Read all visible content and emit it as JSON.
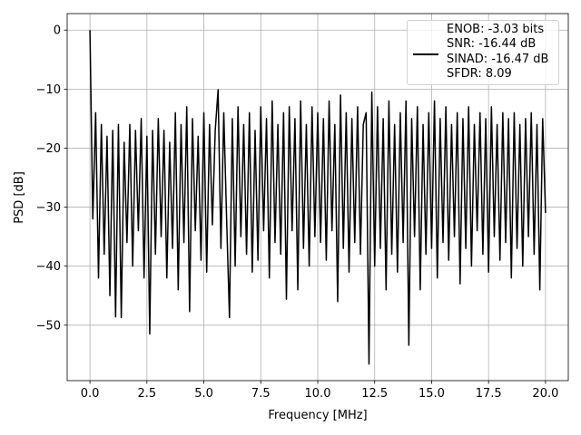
{
  "chart_data": {
    "type": "line",
    "x_label": "Frequency [MHz]",
    "y_label": "PSD [dB]",
    "xlim": [
      -1,
      21
    ],
    "ylim": [
      -59.4,
      2.8
    ],
    "xticks": [
      {
        "value": 0,
        "label": "0.0"
      },
      2.5,
      {
        "value": 5,
        "label": "5.0"
      },
      7.5,
      {
        "value": 10,
        "label": "10.0"
      },
      12.5,
      {
        "value": 15,
        "label": "15.0"
      },
      17.5,
      {
        "value": 20,
        "label": "20.0"
      }
    ],
    "yticks": [
      0,
      {
        "value": -10,
        "label": "−10"
      },
      {
        "value": -20,
        "label": "−20"
      },
      {
        "value": -30,
        "label": "−30"
      },
      {
        "value": -40,
        "label": "−40"
      },
      {
        "value": -50,
        "label": "−50"
      }
    ],
    "grid": true,
    "legend": "upper right",
    "x": [
      0,
      0.125,
      0.25,
      0.375,
      0.5,
      0.625,
      0.75,
      0.875,
      1,
      1.125,
      1.25,
      1.375,
      1.5,
      1.625,
      1.75,
      1.875,
      2,
      2.125,
      2.25,
      2.375,
      2.5,
      2.625,
      2.75,
      2.875,
      3,
      3.125,
      3.25,
      3.375,
      3.5,
      3.625,
      3.75,
      3.875,
      4,
      4.125,
      4.25,
      4.375,
      4.5,
      4.625,
      4.75,
      4.875,
      5,
      5.125,
      5.25,
      5.375,
      5.5,
      5.625,
      5.75,
      5.875,
      6,
      6.125,
      6.25,
      6.375,
      6.5,
      6.625,
      6.75,
      6.875,
      7,
      7.125,
      7.25,
      7.375,
      7.5,
      7.625,
      7.75,
      7.875,
      8,
      8.125,
      8.25,
      8.375,
      8.5,
      8.625,
      8.75,
      8.875,
      9,
      9.125,
      9.25,
      9.375,
      9.5,
      9.625,
      9.75,
      9.875,
      10,
      10.125,
      10.25,
      10.375,
      10.5,
      10.625,
      10.75,
      10.875,
      11,
      11.125,
      11.25,
      11.375,
      11.5,
      11.625,
      11.75,
      11.875,
      12,
      12.125,
      12.25,
      12.375,
      12.5,
      12.625,
      12.75,
      12.875,
      13,
      13.125,
      13.25,
      13.375,
      13.5,
      13.625,
      13.75,
      13.875,
      14,
      14.125,
      14.25,
      14.375,
      14.5,
      14.625,
      14.75,
      14.875,
      15,
      15.125,
      15.25,
      15.375,
      15.5,
      15.625,
      15.75,
      15.875,
      16,
      16.125,
      16.25,
      16.375,
      16.5,
      16.625,
      16.75,
      16.875,
      17,
      17.125,
      17.25,
      17.375,
      17.5,
      17.625,
      17.75,
      17.875,
      18,
      18.125,
      18.25,
      18.375,
      18.5,
      18.625,
      18.75,
      18.875,
      19,
      19.125,
      19.25,
      19.375,
      19.5,
      19.625,
      19.75,
      19.875,
      20
    ],
    "series": [
      {
        "name": "ENOB: -3.03 bits\nSNR: -16.44 dB\nSINAD: -16.47 dB\nSFDR: 8.09",
        "color": "#000000",
        "values": [
          0,
          -32,
          -14,
          -42,
          -16,
          -38,
          -18,
          -45,
          -17,
          -48.6,
          -16,
          -48.7,
          -19,
          -36,
          -16,
          -40,
          -17,
          -34,
          -15,
          -42,
          -18,
          -51.5,
          -17,
          -38,
          -15,
          -35,
          -17,
          -42,
          -19,
          -37,
          -14,
          -44,
          -16,
          -36,
          -13,
          -47.7,
          -15,
          -34,
          -18,
          -39,
          -14,
          -41,
          -16,
          -33,
          -17,
          -10.1,
          -37,
          -14,
          -32,
          -48.7,
          -15,
          -40,
          -13,
          -35,
          -16,
          -38,
          -14,
          -41,
          -17,
          -39,
          -13,
          -34,
          -15,
          -42,
          -12,
          -36,
          -16,
          -38,
          -14,
          -45.6,
          -13,
          -34,
          -15,
          -44,
          -12,
          -37,
          -16,
          -40,
          -13,
          -35,
          -14,
          -36,
          -15,
          -39,
          -12,
          -34,
          -16,
          -46,
          -11,
          -37,
          -14,
          -41,
          -15,
          -36,
          -13,
          -38,
          -16,
          -14,
          -56.6,
          -10.5,
          -40,
          -13,
          -37,
          -15,
          -44,
          -12,
          -38,
          -16,
          -41,
          -14,
          -36,
          -12,
          -53.4,
          -15,
          -35,
          -13,
          -44,
          -16,
          -38,
          -14,
          -37,
          -12,
          -42,
          -15,
          -36,
          -13,
          -39,
          -16,
          -35,
          -14,
          -43,
          -15,
          -37,
          -13,
          -40,
          -16,
          -34,
          -14,
          -38,
          -15,
          -41,
          -13,
          -35,
          -16,
          -39,
          -14,
          -36,
          -15,
          -42,
          -14,
          -37,
          -16,
          -40,
          -15,
          -35,
          -14,
          -38,
          -16,
          -44,
          -15,
          -31
        ]
      }
    ]
  }
}
